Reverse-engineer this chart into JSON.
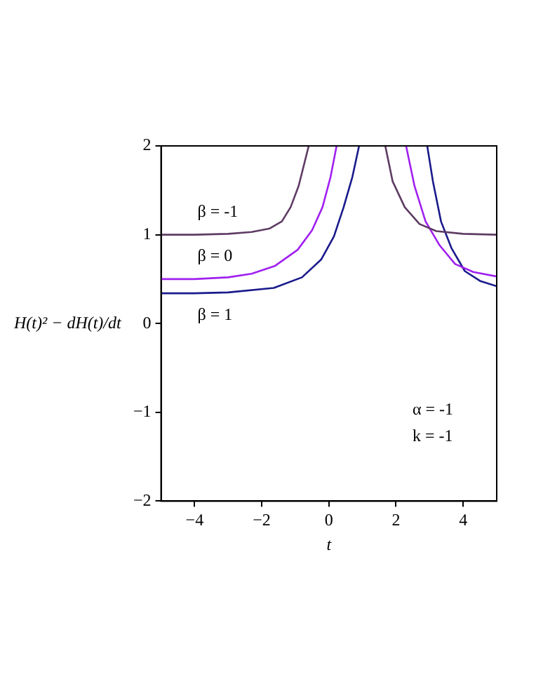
{
  "chart_data": {
    "type": "line",
    "xlabel": "t",
    "ylabel": "H(t)² − dH(t)/dt",
    "xlim": [
      -5,
      5
    ],
    "xticks": [
      -4,
      -2,
      0,
      2,
      4
    ],
    "ylim": [
      -2,
      2
    ],
    "yticks": [
      -2,
      -1,
      0,
      1,
      2
    ],
    "grid": false,
    "marker": "none",
    "line_style": "solid",
    "series": [
      {
        "name": "β = -1",
        "color": "#5e3c63",
        "x": [
          -5,
          -4,
          -3,
          -2.3,
          -1.76,
          -1.4,
          -1.14,
          -0.9,
          -0.6,
          0.5,
          1.68,
          1.9,
          2.26,
          2.7,
          3.2,
          4,
          5
        ],
        "values": [
          1.0,
          1.0,
          1.01,
          1.03,
          1.07,
          1.15,
          1.31,
          1.55,
          2,
          null,
          2,
          1.6,
          1.31,
          1.12,
          1.04,
          1.01,
          1.0
        ]
      },
      {
        "name": "β = 0",
        "color": "#a020f0",
        "x": [
          -5,
          -4,
          -3,
          -2.3,
          -1.6,
          -0.93,
          -0.5,
          -0.19,
          0.05,
          0.23,
          1.2,
          2.3,
          2.55,
          2.88,
          3.3,
          3.76,
          4.3,
          5
        ],
        "values": [
          0.5,
          0.5,
          0.52,
          0.56,
          0.65,
          0.83,
          1.05,
          1.31,
          1.65,
          2,
          null,
          2,
          1.55,
          1.15,
          0.88,
          0.67,
          0.58,
          0.53
        ]
      },
      {
        "name": "β = 1",
        "color": "#1a1a8c",
        "x": [
          -5,
          -4,
          -3,
          -1.64,
          -0.8,
          -0.23,
          0.15,
          0.44,
          0.7,
          0.9,
          2,
          2.93,
          3.1,
          3.34,
          3.65,
          4.05,
          4.5,
          5
        ],
        "values": [
          0.34,
          0.34,
          0.35,
          0.4,
          0.52,
          0.72,
          0.98,
          1.31,
          1.65,
          2,
          null,
          2,
          1.6,
          1.15,
          0.85,
          0.59,
          0.48,
          0.42
        ]
      }
    ],
    "annotations": [
      "α = -1",
      "k = -1"
    ]
  }
}
